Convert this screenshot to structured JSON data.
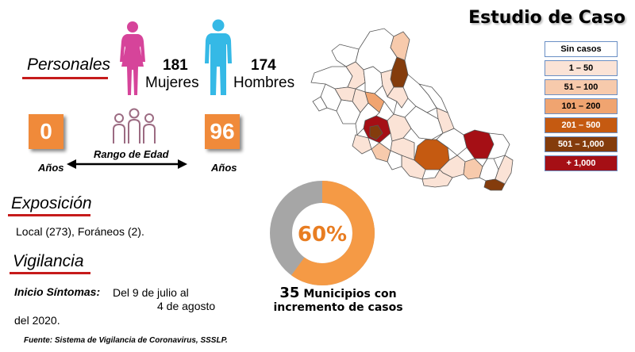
{
  "title": "Estudio de Caso",
  "personales": {
    "heading": "Personales",
    "women_count": "181",
    "women_label": "Mujeres",
    "men_count": "174",
    "men_label": "Hombres"
  },
  "age_range": {
    "min_value": "0",
    "max_value": "96",
    "label": "Rango de Edad",
    "min_unit": "Años",
    "max_unit": "Años"
  },
  "exposicion": {
    "heading": "Exposición",
    "text": "Local (273), Foráneos (2)."
  },
  "vigilancia": {
    "heading": "Vigilancia",
    "label": "Inicio Síntomas:",
    "line1": "Del 9 de julio al",
    "line2": "4 de agosto",
    "line3": "del 2020."
  },
  "donut": {
    "percent_label": "60%",
    "value_fraction": 0.6,
    "color_fill": "#f59a45",
    "color_rest": "#a6a6a6"
  },
  "municipios": {
    "count": "35",
    "line1": "Municipios con",
    "line2": "incremento de casos"
  },
  "legend": [
    {
      "label": "Sin casos",
      "color": "#ffffff"
    },
    {
      "label": "1 – 50",
      "color": "#fbe3d6"
    },
    {
      "label": "51 – 100",
      "color": "#f7caac"
    },
    {
      "label": "101 – 200",
      "color": "#f0a470"
    },
    {
      "label": "201 – 500",
      "color": "#c55a11"
    },
    {
      "label": "501 – 1,000",
      "color": "#843c0c"
    },
    {
      "label": "+ 1,000",
      "color": "#a50f15"
    }
  ],
  "source": "Fuente: Sistema de Vigilancia de Coronavirus, SSSLP.",
  "icons": {
    "female": "female-figure-icon",
    "male": "male-figure-icon",
    "group": "group-people-icon",
    "arrow": "double-arrow-icon",
    "map": "state-map-icon"
  }
}
